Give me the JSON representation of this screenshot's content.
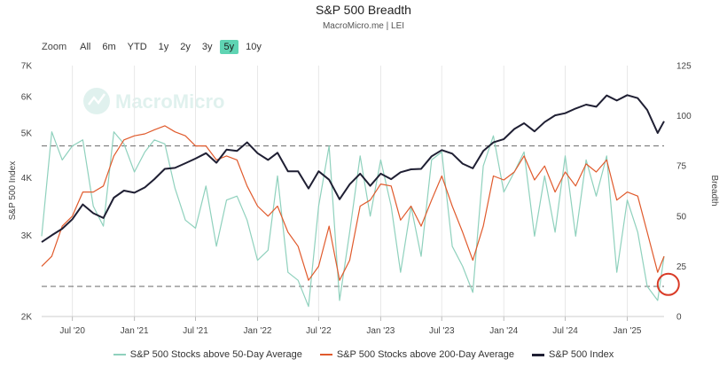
{
  "title": "S&P 500 Breadth",
  "subtitle": "MacroMicro.me | LEI",
  "watermark": "MacroMicro",
  "zoom": {
    "label": "Zoom",
    "options": [
      "All",
      "6m",
      "YTD",
      "1y",
      "2y",
      "3y",
      "5y",
      "10y"
    ],
    "active": "5y"
  },
  "colors": {
    "breadth50": "#8fd1bd",
    "breadth200": "#e05a2c",
    "index": "#1f1f33",
    "highlight": "#d93a26"
  },
  "chart_data": {
    "type": "line",
    "x_axis": {
      "ticks": [
        "Jul '20",
        "Jan '21",
        "Jul '21",
        "Jan '22",
        "Jul '22",
        "Jan '23",
        "Jul '23",
        "Jan '24",
        "Jul '24",
        "Jan '25"
      ],
      "range": [
        "2020-04",
        "2025-04"
      ]
    },
    "left_axis": {
      "label": "S&P 500 Index",
      "scale": "log",
      "ticks": [
        "2K",
        "3K",
        "4K",
        "5K",
        "6K",
        "7K"
      ],
      "range": [
        2000,
        7000
      ]
    },
    "right_axis": {
      "label": "Breadth",
      "ticks": [
        "0",
        "25",
        "50",
        "75",
        "100",
        "125"
      ],
      "range": [
        0,
        125
      ]
    },
    "reference_lines": [
      {
        "axis": "right",
        "value": 85,
        "style": "dashed"
      },
      {
        "axis": "right",
        "value": 15,
        "style": "dashed"
      }
    ],
    "highlight": {
      "x": "2025-04",
      "y": 16,
      "axis": "right",
      "shape": "circle"
    },
    "series": [
      {
        "name": "S&P 500 Stocks above 50-Day Average",
        "axis": "right",
        "points": [
          [
            "2020-04",
            40
          ],
          [
            "2020-05",
            92
          ],
          [
            "2020-06",
            78
          ],
          [
            "2020-07",
            85
          ],
          [
            "2020-08",
            88
          ],
          [
            "2020-09",
            55
          ],
          [
            "2020-10",
            45
          ],
          [
            "2020-11",
            92
          ],
          [
            "2020-12",
            86
          ],
          [
            "2021-01",
            72
          ],
          [
            "2021-02",
            82
          ],
          [
            "2021-03",
            88
          ],
          [
            "2021-04",
            86
          ],
          [
            "2021-05",
            64
          ],
          [
            "2021-06",
            48
          ],
          [
            "2021-07",
            44
          ],
          [
            "2021-08",
            65
          ],
          [
            "2021-09",
            35
          ],
          [
            "2021-10",
            58
          ],
          [
            "2021-11",
            60
          ],
          [
            "2021-12",
            48
          ],
          [
            "2022-01",
            28
          ],
          [
            "2022-02",
            33
          ],
          [
            "2022-03",
            70
          ],
          [
            "2022-04",
            22
          ],
          [
            "2022-05",
            18
          ],
          [
            "2022-06",
            5
          ],
          [
            "2022-07",
            55
          ],
          [
            "2022-08",
            85
          ],
          [
            "2022-09",
            8
          ],
          [
            "2022-10",
            42
          ],
          [
            "2022-11",
            80
          ],
          [
            "2022-12",
            50
          ],
          [
            "2023-01",
            78
          ],
          [
            "2023-02",
            55
          ],
          [
            "2023-03",
            22
          ],
          [
            "2023-04",
            55
          ],
          [
            "2023-05",
            30
          ],
          [
            "2023-06",
            78
          ],
          [
            "2023-07",
            82
          ],
          [
            "2023-08",
            35
          ],
          [
            "2023-09",
            25
          ],
          [
            "2023-10",
            12
          ],
          [
            "2023-11",
            75
          ],
          [
            "2023-12",
            90
          ],
          [
            "2024-01",
            62
          ],
          [
            "2024-02",
            72
          ],
          [
            "2024-03",
            82
          ],
          [
            "2024-04",
            40
          ],
          [
            "2024-05",
            70
          ],
          [
            "2024-06",
            42
          ],
          [
            "2024-07",
            80
          ],
          [
            "2024-08",
            40
          ],
          [
            "2024-09",
            78
          ],
          [
            "2024-10",
            60
          ],
          [
            "2024-11",
            80
          ],
          [
            "2024-12",
            22
          ],
          [
            "2025-01",
            58
          ],
          [
            "2025-02",
            42
          ],
          [
            "2025-03",
            15
          ],
          [
            "2025-04",
            8
          ],
          [
            "2025-04-20",
            30
          ]
        ]
      },
      {
        "name": "S&P 500 Stocks above 200-Day Average",
        "axis": "right",
        "points": [
          [
            "2020-04",
            25
          ],
          [
            "2020-05",
            30
          ],
          [
            "2020-06",
            45
          ],
          [
            "2020-07",
            50
          ],
          [
            "2020-08",
            62
          ],
          [
            "2020-09",
            62
          ],
          [
            "2020-10",
            65
          ],
          [
            "2020-11",
            80
          ],
          [
            "2020-12",
            88
          ],
          [
            "2021-01",
            90
          ],
          [
            "2021-02",
            91
          ],
          [
            "2021-03",
            93
          ],
          [
            "2021-04",
            95
          ],
          [
            "2021-05",
            92
          ],
          [
            "2021-06",
            90
          ],
          [
            "2021-07",
            85
          ],
          [
            "2021-08",
            85
          ],
          [
            "2021-09",
            78
          ],
          [
            "2021-10",
            80
          ],
          [
            "2021-11",
            78
          ],
          [
            "2021-12",
            65
          ],
          [
            "2022-01",
            55
          ],
          [
            "2022-02",
            50
          ],
          [
            "2022-03",
            55
          ],
          [
            "2022-04",
            42
          ],
          [
            "2022-05",
            35
          ],
          [
            "2022-06",
            18
          ],
          [
            "2022-07",
            25
          ],
          [
            "2022-08",
            45
          ],
          [
            "2022-09",
            18
          ],
          [
            "2022-10",
            28
          ],
          [
            "2022-11",
            55
          ],
          [
            "2022-12",
            58
          ],
          [
            "2023-01",
            66
          ],
          [
            "2023-02",
            65
          ],
          [
            "2023-03",
            48
          ],
          [
            "2023-04",
            55
          ],
          [
            "2023-05",
            45
          ],
          [
            "2023-06",
            58
          ],
          [
            "2023-07",
            70
          ],
          [
            "2023-08",
            55
          ],
          [
            "2023-09",
            42
          ],
          [
            "2023-10",
            28
          ],
          [
            "2023-11",
            45
          ],
          [
            "2023-12",
            70
          ],
          [
            "2024-01",
            68
          ],
          [
            "2024-02",
            72
          ],
          [
            "2024-03",
            80
          ],
          [
            "2024-04",
            68
          ],
          [
            "2024-05",
            75
          ],
          [
            "2024-06",
            62
          ],
          [
            "2024-07",
            72
          ],
          [
            "2024-08",
            65
          ],
          [
            "2024-09",
            76
          ],
          [
            "2024-10",
            72
          ],
          [
            "2024-11",
            78
          ],
          [
            "2024-12",
            58
          ],
          [
            "2025-01",
            62
          ],
          [
            "2025-02",
            60
          ],
          [
            "2025-03",
            42
          ],
          [
            "2025-04",
            22
          ],
          [
            "2025-04-20",
            30
          ]
        ]
      },
      {
        "name": "S&P 500 Index",
        "axis": "left",
        "points": [
          [
            "2020-04",
            2900
          ],
          [
            "2020-05",
            3000
          ],
          [
            "2020-06",
            3100
          ],
          [
            "2020-07",
            3250
          ],
          [
            "2020-08",
            3500
          ],
          [
            "2020-09",
            3350
          ],
          [
            "2020-10",
            3270
          ],
          [
            "2020-11",
            3620
          ],
          [
            "2020-12",
            3750
          ],
          [
            "2021-01",
            3710
          ],
          [
            "2021-02",
            3810
          ],
          [
            "2021-03",
            3970
          ],
          [
            "2021-04",
            4180
          ],
          [
            "2021-05",
            4200
          ],
          [
            "2021-06",
            4300
          ],
          [
            "2021-07",
            4400
          ],
          [
            "2021-08",
            4520
          ],
          [
            "2021-09",
            4310
          ],
          [
            "2021-10",
            4600
          ],
          [
            "2021-11",
            4570
          ],
          [
            "2021-12",
            4770
          ],
          [
            "2022-01",
            4520
          ],
          [
            "2022-02",
            4370
          ],
          [
            "2022-03",
            4530
          ],
          [
            "2022-04",
            4130
          ],
          [
            "2022-05",
            4130
          ],
          [
            "2022-06",
            3790
          ],
          [
            "2022-07",
            4130
          ],
          [
            "2022-08",
            3960
          ],
          [
            "2022-09",
            3590
          ],
          [
            "2022-10",
            3870
          ],
          [
            "2022-11",
            4080
          ],
          [
            "2022-12",
            3840
          ],
          [
            "2023-01",
            4080
          ],
          [
            "2023-02",
            3970
          ],
          [
            "2023-03",
            4110
          ],
          [
            "2023-04",
            4170
          ],
          [
            "2023-05",
            4180
          ],
          [
            "2023-06",
            4450
          ],
          [
            "2023-07",
            4590
          ],
          [
            "2023-08",
            4510
          ],
          [
            "2023-09",
            4290
          ],
          [
            "2023-10",
            4190
          ],
          [
            "2023-11",
            4570
          ],
          [
            "2023-12",
            4770
          ],
          [
            "2024-01",
            4850
          ],
          [
            "2024-02",
            5100
          ],
          [
            "2024-03",
            5250
          ],
          [
            "2024-04",
            5040
          ],
          [
            "2024-05",
            5280
          ],
          [
            "2024-06",
            5460
          ],
          [
            "2024-07",
            5520
          ],
          [
            "2024-08",
            5650
          ],
          [
            "2024-09",
            5760
          ],
          [
            "2024-10",
            5700
          ],
          [
            "2024-11",
            6030
          ],
          [
            "2024-12",
            5880
          ],
          [
            "2025-01",
            6040
          ],
          [
            "2025-02",
            5950
          ],
          [
            "2025-03",
            5610
          ],
          [
            "2025-04",
            5000
          ],
          [
            "2025-04-20",
            5300
          ]
        ]
      }
    ]
  }
}
